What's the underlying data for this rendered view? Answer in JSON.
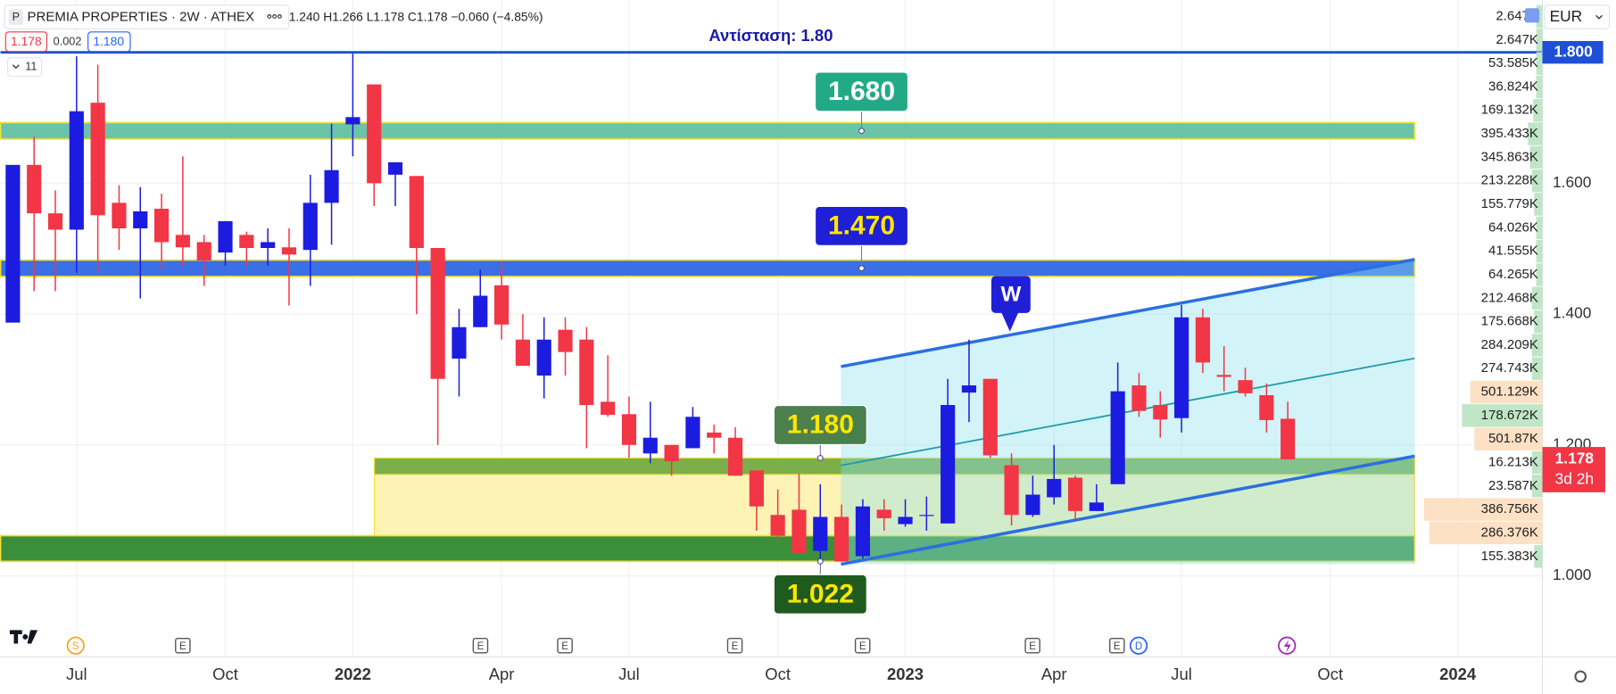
{
  "header": {
    "symbol": "P",
    "title": "PREMIA PROPERTIES · 2W · ATHEX",
    "ohlc": "1.240 H1.266 L1.178 C1.178 −0.060 (−4.85%)",
    "bid": "1.178",
    "spread": "0.002",
    "ask": "1.180",
    "indicators": "11",
    "currency": "EUR"
  },
  "chart_data": {
    "type": "candlestick",
    "categories": [
      null,
      null,
      null,
      "Jul",
      null,
      null,
      null,
      null,
      null,
      null,
      "Oct",
      null,
      null,
      null,
      null,
      null,
      "2022",
      null,
      null,
      null,
      null,
      null,
      null,
      "Apr",
      null,
      null,
      null,
      null,
      null,
      "Jul",
      null,
      null,
      null,
      null,
      null,
      null,
      "Oct",
      null,
      null,
      null,
      null,
      null,
      "2023",
      null,
      null,
      null,
      null,
      null,
      null,
      "Apr",
      null,
      null,
      null,
      null,
      null,
      "Jul",
      null,
      null,
      null,
      null,
      null,
      null,
      "Oct",
      null,
      null,
      null,
      null,
      null,
      "2024",
      null,
      null,
      null,
      null
    ],
    "open": [
      1.387,
      1.628,
      1.554,
      1.529,
      1.723,
      1.57,
      1.531,
      1.561,
      1.521,
      1.51,
      1.494,
      1.521,
      1.501,
      1.502,
      1.498,
      1.57,
      1.69,
      1.751,
      1.613,
      1.611,
      1.501,
      1.332,
      1.38,
      1.444,
      1.361,
      1.306,
      1.376,
      1.361,
      1.266,
      1.247,
      1.187,
      1.2,
      1.195,
      1.219,
      1.211,
      1.161,
      1.093,
      1.101,
      1.038,
      1.09,
      1.03,
      1.101,
      1.079,
      1.092,
      1.08,
      1.28,
      1.301,
      1.169,
      1.093,
      1.12,
      1.15,
      1.099,
      1.14,
      1.291,
      1.261,
      1.241,
      1.395,
      1.307,
      1.299,
      1.276,
      1.24,
      null,
      null,
      null,
      null,
      null,
      null,
      null,
      null,
      null,
      null,
      null,
      null
    ],
    "high": [
      1.628,
      1.671,
      1.589,
      1.794,
      1.781,
      1.597,
      1.594,
      1.584,
      1.641,
      1.521,
      1.542,
      1.526,
      1.531,
      1.531,
      1.613,
      1.691,
      1.798,
      1.751,
      1.632,
      1.611,
      1.501,
      1.408,
      1.468,
      1.48,
      1.4,
      1.395,
      1.395,
      1.38,
      1.337,
      1.274,
      1.266,
      1.2,
      1.258,
      1.231,
      1.227,
      1.161,
      1.132,
      1.156,
      1.14,
      1.109,
      1.117,
      1.117,
      1.117,
      1.121,
      1.301,
      1.361,
      1.301,
      1.187,
      1.153,
      1.2,
      1.153,
      1.14,
      1.326,
      1.31,
      1.282,
      1.414,
      1.408,
      1.351,
      1.318,
      1.294,
      1.266,
      null,
      null,
      null,
      null,
      null,
      null,
      null,
      null,
      null,
      null,
      null,
      null
    ],
    "low": [
      1.387,
      1.435,
      1.435,
      1.463,
      1.463,
      1.498,
      1.424,
      1.468,
      1.474,
      1.443,
      1.474,
      1.474,
      1.474,
      1.413,
      1.443,
      1.506,
      1.641,
      1.565,
      1.565,
      1.4,
      1.2,
      1.274,
      1.38,
      1.361,
      1.321,
      1.271,
      1.306,
      1.195,
      1.243,
      1.18,
      1.172,
      1.153,
      1.195,
      1.187,
      1.153,
      1.069,
      1.054,
      1.035,
      1.025,
      1.022,
      1.026,
      1.069,
      1.075,
      1.069,
      1.08,
      1.235,
      1.18,
      1.077,
      1.09,
      1.109,
      1.085,
      1.099,
      1.14,
      1.243,
      1.211,
      1.219,
      1.31,
      1.282,
      1.274,
      1.219,
      1.178,
      null,
      null,
      null,
      null,
      null,
      null,
      null,
      null,
      null,
      null,
      null,
      null
    ],
    "close": [
      1.628,
      1.554,
      1.529,
      1.71,
      1.551,
      1.531,
      1.557,
      1.51,
      1.502,
      1.482,
      1.542,
      1.501,
      1.51,
      1.491,
      1.57,
      1.62,
      1.701,
      1.6,
      1.632,
      1.501,
      1.301,
      1.38,
      1.428,
      1.384,
      1.321,
      1.361,
      1.342,
      1.261,
      1.246,
      1.2,
      1.211,
      1.175,
      1.243,
      1.211,
      1.153,
      1.106,
      1.061,
      1.035,
      1.09,
      1.022,
      1.106,
      1.088,
      1.09,
      1.093,
      1.261,
      1.291,
      1.184,
      1.093,
      1.124,
      1.148,
      1.099,
      1.112,
      1.282,
      1.252,
      1.239,
      1.395,
      1.326,
      1.304,
      1.279,
      1.238,
      1.178,
      null,
      null,
      null,
      null,
      null,
      null,
      null,
      null,
      null,
      null,
      null,
      null
    ],
    "up_color": "#1c1ce0",
    "down_color": "#f23645",
    "ylim": [
      0.876,
      1.88
    ],
    "yticks": [
      {
        "value": 1.0,
        "label": "1.000"
      },
      {
        "value": 1.2,
        "label": "1.200"
      },
      {
        "value": 1.4,
        "label": "1.400"
      },
      {
        "value": 1.6,
        "label": "1.600"
      }
    ],
    "grid": true,
    "resistance": {
      "text": "Αντίσταση: 1.80",
      "value": 1.8,
      "label": "1.800"
    },
    "levels": [
      {
        "value": 1.68,
        "label": "1.680"
      },
      {
        "value": 1.47,
        "label": "1.470"
      },
      {
        "value": 1.18,
        "label": "1.180"
      },
      1.022
    ],
    "pattern": "W",
    "last_price": {
      "value": 1.178,
      "countdown": "3d 2h"
    },
    "volume_profile": [
      "2.647K",
      "2.647K",
      "53.585K",
      "36.824K",
      "169.132K",
      "395.433K",
      "345.863K",
      "213.228K",
      "155.779K",
      "64.026K",
      "41.555K",
      "64.265K",
      "212.468K",
      "175.668K",
      "284.209K",
      "274.743K",
      "501.129K",
      "178.672K",
      "501.87K",
      "16.213K",
      "23.587K",
      "386.756K",
      "286.376K",
      "155.383K"
    ],
    "events": [
      "S",
      "E",
      "E",
      "E",
      "E",
      "E",
      "E",
      "E",
      "D"
    ]
  }
}
